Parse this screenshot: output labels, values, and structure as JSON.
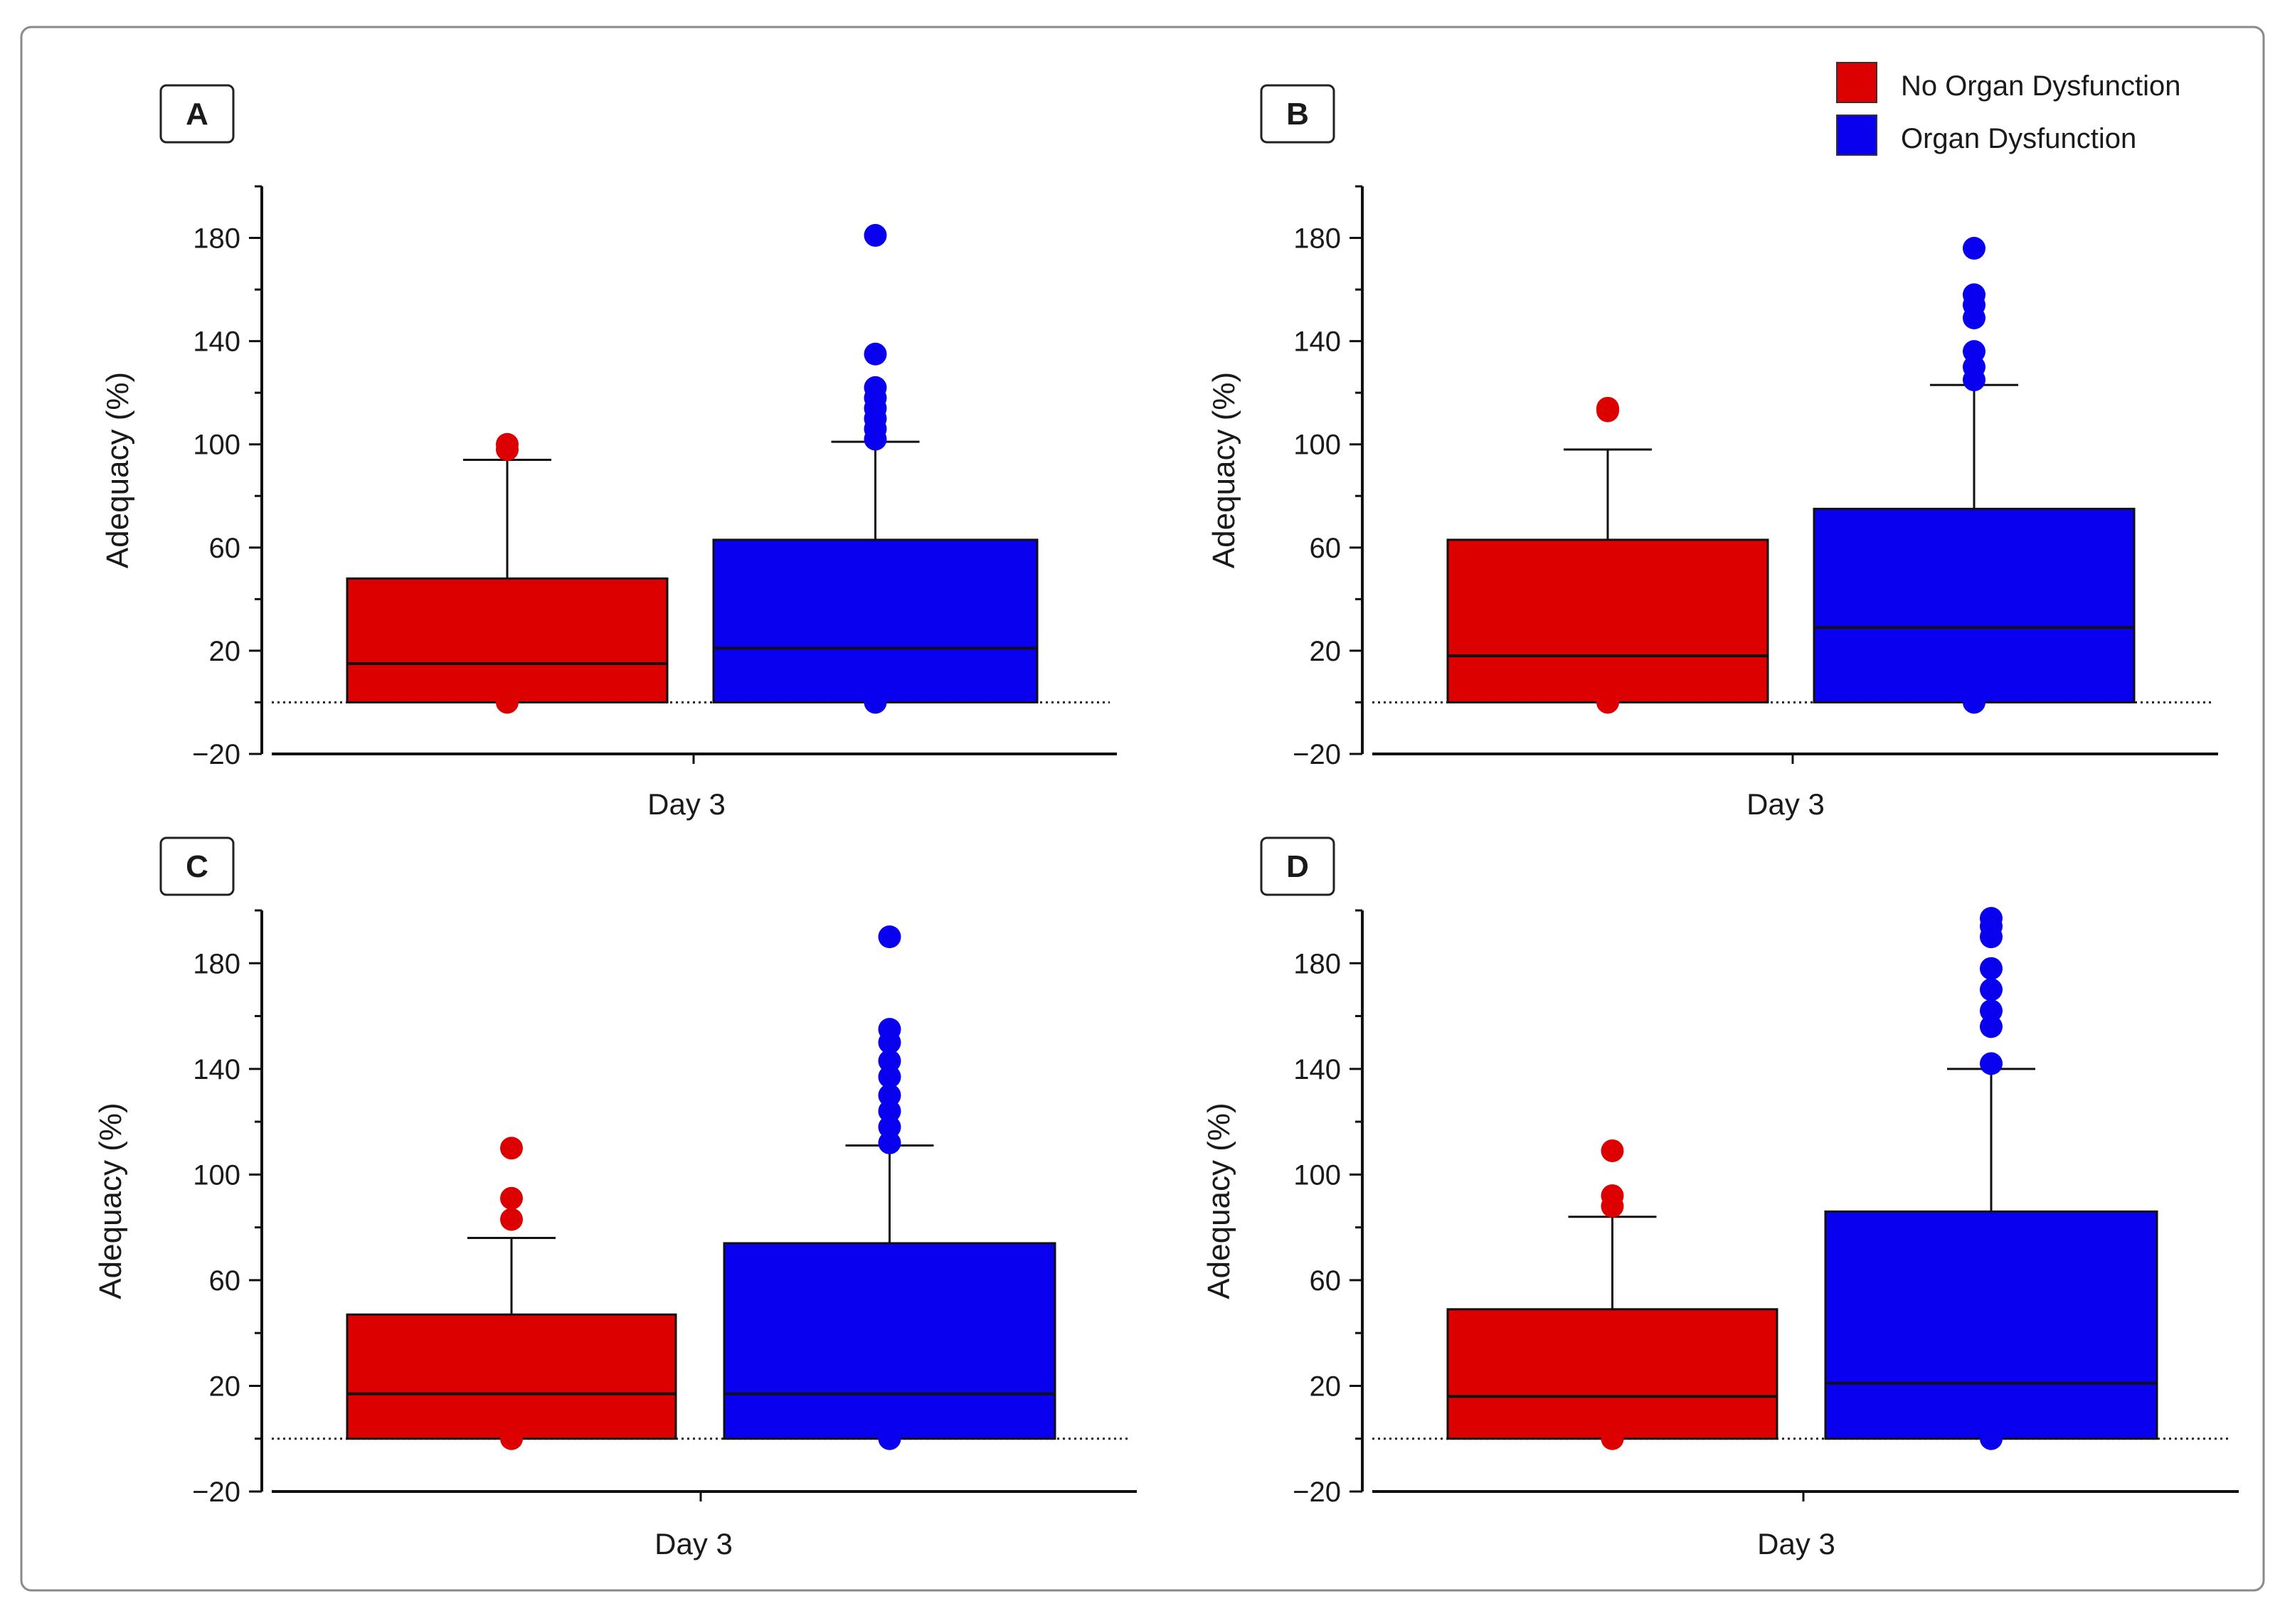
{
  "legend": {
    "items": [
      {
        "label": "No Organ Dysfunction",
        "color": "#dd0000"
      },
      {
        "label": "Organ Dysfunction",
        "color": "#0a00f0"
      }
    ]
  },
  "chart_data": [
    {
      "panel": "A",
      "type": "boxplot",
      "xlabel": "Day 3",
      "ylabel": "Adequacy (%)",
      "ylim": [
        -20,
        200
      ],
      "yticks": [
        -20,
        20,
        60,
        100,
        140,
        180
      ],
      "reference_line": 0,
      "boxes": [
        {
          "group": "No Organ Dysfunction",
          "color": "#dd0000",
          "q1": 0,
          "median": 15,
          "q3": 48,
          "whisker_low": 0,
          "whisker_high": 94,
          "outliers": [
            0,
            98,
            100
          ]
        },
        {
          "group": "Organ Dysfunction",
          "color": "#0a00f0",
          "q1": 0,
          "median": 21,
          "q3": 63,
          "whisker_low": 0,
          "whisker_high": 101,
          "outliers": [
            0,
            102,
            106,
            110,
            114,
            118,
            122,
            135,
            181
          ]
        }
      ]
    },
    {
      "panel": "B",
      "type": "boxplot",
      "xlabel": "Day 3",
      "ylabel": "Adequacy (%)",
      "ylim": [
        -20,
        200
      ],
      "yticks": [
        -20,
        20,
        60,
        100,
        140,
        180
      ],
      "reference_line": 0,
      "boxes": [
        {
          "group": "No Organ Dysfunction",
          "color": "#dd0000",
          "q1": 0,
          "median": 18,
          "q3": 63,
          "whisker_low": 0,
          "whisker_high": 98,
          "outliers": [
            0,
            113,
            114
          ]
        },
        {
          "group": "Organ Dysfunction",
          "color": "#0a00f0",
          "q1": 0,
          "median": 29,
          "q3": 75,
          "whisker_low": 0,
          "whisker_high": 123,
          "outliers": [
            0,
            125,
            130,
            136,
            149,
            154,
            158,
            176
          ]
        }
      ]
    },
    {
      "panel": "C",
      "type": "boxplot",
      "xlabel": "Day 3",
      "ylabel": "Adequacy (%)",
      "ylim": [
        -20,
        200
      ],
      "yticks": [
        -20,
        20,
        60,
        100,
        140,
        180
      ],
      "reference_line": 0,
      "boxes": [
        {
          "group": "No Organ Dysfunction",
          "color": "#dd0000",
          "q1": 0,
          "median": 17,
          "q3": 47,
          "whisker_low": 0,
          "whisker_high": 76,
          "outliers": [
            0,
            83,
            91,
            110
          ]
        },
        {
          "group": "Organ Dysfunction",
          "color": "#0a00f0",
          "q1": 0,
          "median": 17,
          "q3": 74,
          "whisker_low": 0,
          "whisker_high": 111,
          "outliers": [
            0,
            112,
            118,
            124,
            130,
            137,
            143,
            150,
            155,
            190
          ]
        }
      ]
    },
    {
      "panel": "D",
      "type": "boxplot",
      "xlabel": "Day 3",
      "ylabel": "Adequacy (%)",
      "ylim": [
        -20,
        200
      ],
      "yticks": [
        -20,
        20,
        60,
        100,
        140,
        180
      ],
      "reference_line": 0,
      "boxes": [
        {
          "group": "No Organ Dysfunction",
          "color": "#dd0000",
          "q1": 0,
          "median": 16,
          "q3": 49,
          "whisker_low": 0,
          "whisker_high": 84,
          "outliers": [
            0,
            88,
            92,
            109
          ]
        },
        {
          "group": "Organ Dysfunction",
          "color": "#0a00f0",
          "q1": 0,
          "median": 21,
          "q3": 86,
          "whisker_low": 0,
          "whisker_high": 140,
          "outliers": [
            0,
            142,
            156,
            162,
            170,
            178,
            190,
            194,
            197
          ]
        }
      ]
    }
  ]
}
